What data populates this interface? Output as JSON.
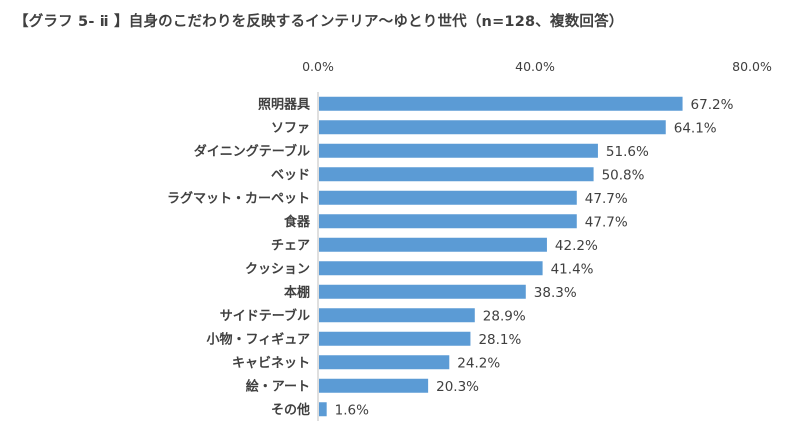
{
  "chart_data": {
    "type": "bar",
    "orientation": "horizontal",
    "title": "【グラフ 5- ⅱ 】自身のこだわりを反映するインテリア～ゆとり世代（n=128、複数回答）",
    "categories": [
      "照明器具",
      "ソファ",
      "ダイニングテーブル",
      "ベッド",
      "ラグマット・カーペット",
      "食器",
      "チェア",
      "クッション",
      "本棚",
      "サイドテーブル",
      "小物・フィギュア",
      "キャビネット",
      "絵・アート",
      "その他"
    ],
    "values": [
      67.2,
      64.1,
      51.6,
      50.8,
      47.7,
      47.7,
      42.2,
      41.4,
      38.3,
      28.9,
      28.1,
      24.2,
      20.3,
      1.6
    ],
    "value_labels": [
      "67.2%",
      "64.1%",
      "51.6%",
      "50.8%",
      "47.7%",
      "47.7%",
      "42.2%",
      "41.4%",
      "38.3%",
      "28.9%",
      "28.1%",
      "24.2%",
      "20.3%",
      "1.6%"
    ],
    "xlim": [
      0,
      80
    ],
    "ticks": [
      0,
      40,
      80
    ],
    "tick_labels": [
      "0.0%",
      "40.0%",
      "80.0%"
    ],
    "axis_position": "top",
    "grid": false,
    "legend": "none",
    "bar_color": "#5b9bd5"
  }
}
